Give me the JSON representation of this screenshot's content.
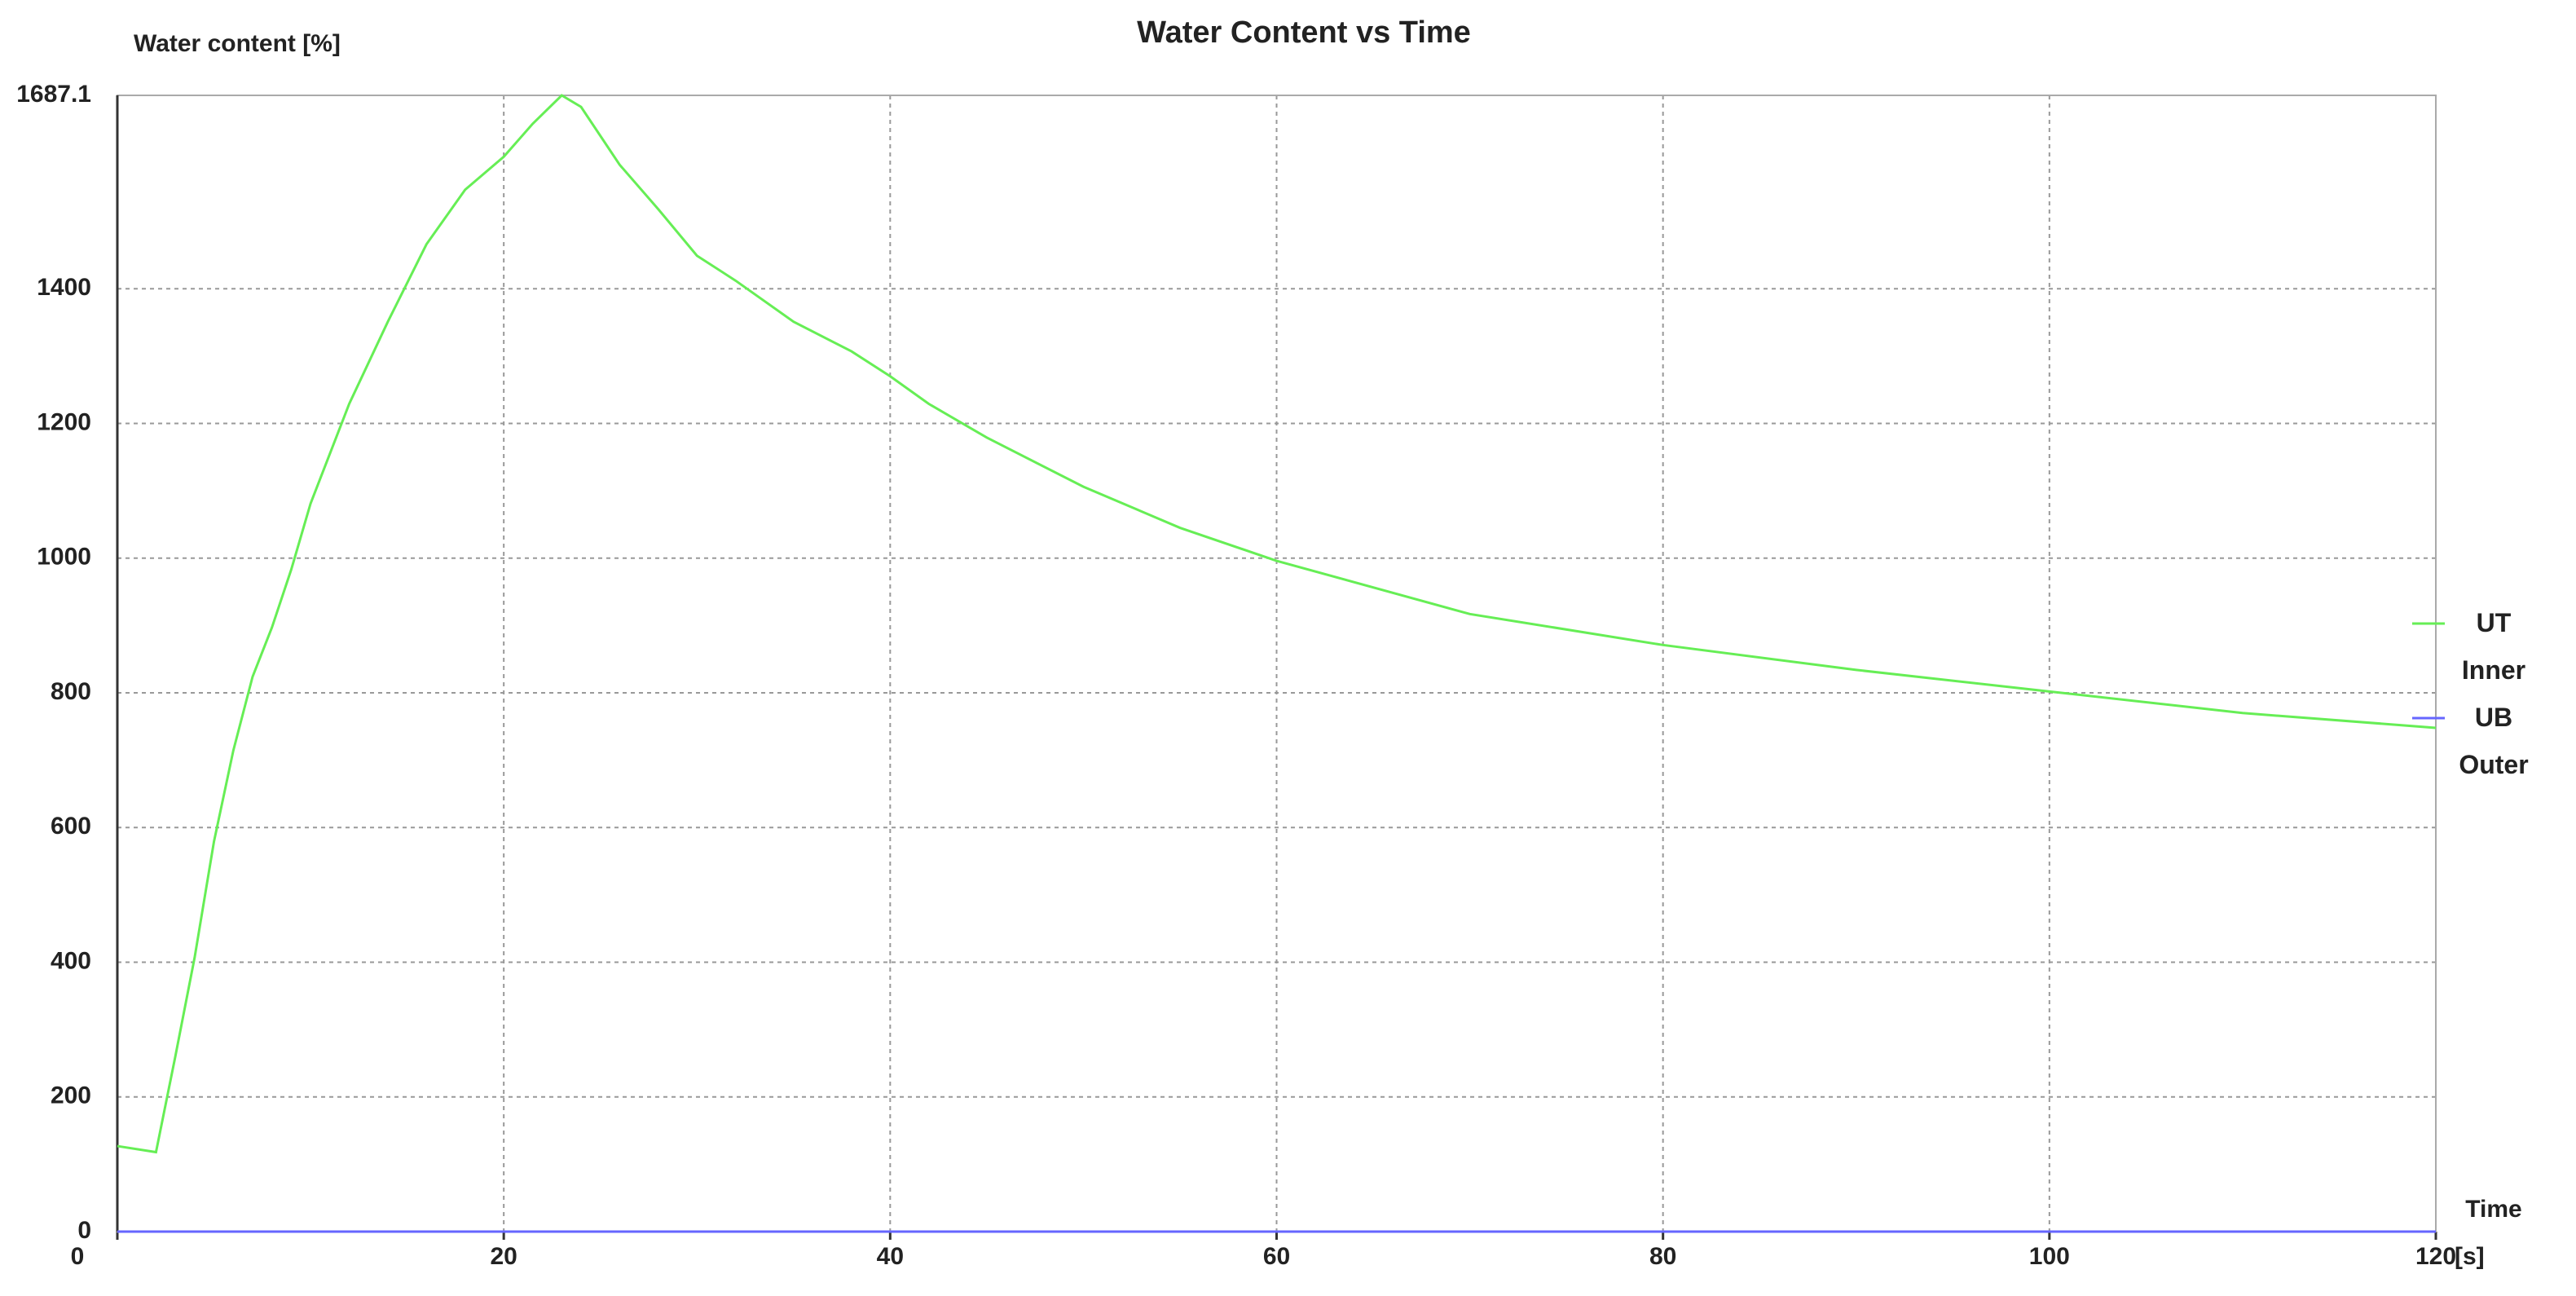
{
  "chart_data": {
    "type": "line",
    "title": "Water Content vs Time",
    "y_label": "Water content  [%]",
    "x_label": "Time",
    "x_unit": "[s]",
    "xlim": [
      0,
      120
    ],
    "xticks": [
      0,
      20,
      40,
      60,
      80,
      100,
      120
    ],
    "ylim": [
      0,
      1687.1
    ],
    "yticks": [
      0,
      200,
      400,
      600,
      800,
      1000,
      1200,
      1400,
      1687.1
    ],
    "grid": true,
    "legend": "right",
    "series": [
      {
        "name": "UT Inner",
        "color": "#66ee55",
        "x": [
          0,
          2,
          3,
          4,
          5,
          6,
          7,
          8,
          9,
          10,
          12,
          14,
          16,
          18,
          20,
          21.5,
          23,
          24,
          26,
          28,
          30,
          32,
          35,
          38,
          40,
          42,
          45,
          50,
          55,
          60,
          70,
          80,
          90,
          100,
          110,
          120
        ],
        "values": [
          127,
          118,
          260,
          407,
          579,
          714,
          824,
          897,
          983,
          1081,
          1229,
          1351,
          1466,
          1547,
          1596,
          1645,
          1687.1,
          1670,
          1584,
          1518,
          1449,
          1412,
          1351,
          1307,
          1270,
          1229,
          1179,
          1106,
          1045,
          996,
          917,
          871,
          834,
          802,
          770,
          748
        ]
      },
      {
        "name": "UB Outer",
        "color": "#6666ff",
        "x": [
          0,
          120
        ],
        "values": [
          0,
          0
        ]
      }
    ]
  }
}
